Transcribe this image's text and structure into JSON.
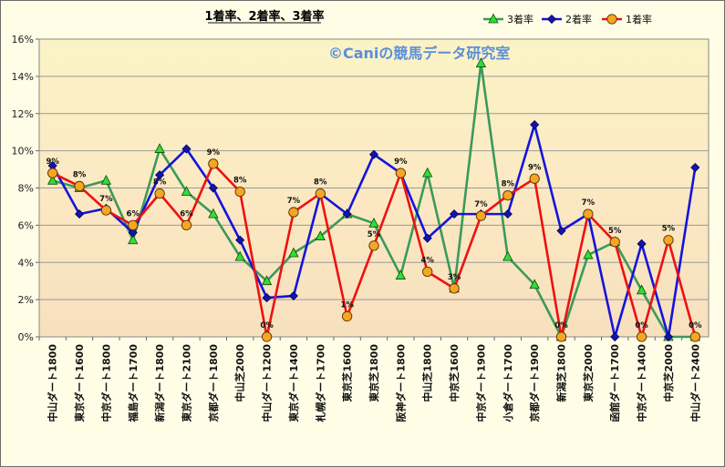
{
  "chart_data": {
    "type": "line",
    "title": "1着率、2着率、3着率",
    "watermark": "©Caniの競馬データ研究室",
    "xlabel": "",
    "ylabel": "",
    "ylim": [
      0,
      16
    ],
    "y_ticks": [
      "0%",
      "2%",
      "4%",
      "6%",
      "8%",
      "10%",
      "12%",
      "14%",
      "16%"
    ],
    "grid": true,
    "legend_position": "top-right",
    "categories": [
      "中山ダート1800",
      "東京ダート1600",
      "中京ダート1800",
      "福島ダート1700",
      "新潟ダート1800",
      "東京ダート2100",
      "京都ダート1800",
      "中山芝2000",
      "中山ダート1200",
      "東京ダート1400",
      "札幌ダート1700",
      "東京芝1600",
      "東京芝1800",
      "阪神ダート1800",
      "中山芝1800",
      "中京芝1600",
      "中京ダート1900",
      "小倉ダート1700",
      "京都ダート1900",
      "新潟芝1800",
      "東京芝2000",
      "函館ダート1700",
      "中京ダート1400",
      "中京芝2000",
      "中山ダート2400"
    ],
    "series": [
      {
        "name": "3着率",
        "color": "#3a9a5a",
        "marker": "triangle",
        "marker_fill": "#33dd33",
        "values": [
          8.4,
          8.0,
          8.4,
          5.2,
          10.1,
          7.8,
          6.6,
          4.3,
          3.0,
          4.5,
          5.4,
          6.6,
          6.1,
          3.3,
          8.8,
          2.6,
          14.7,
          4.3,
          2.8,
          0.0,
          4.4,
          5.1,
          2.5,
          0.0,
          0.0
        ]
      },
      {
        "name": "2着率",
        "color": "#1414dd",
        "marker": "diamond",
        "marker_fill": "#1414aa",
        "values": [
          9.2,
          6.6,
          6.9,
          5.6,
          8.7,
          10.1,
          8.0,
          5.2,
          2.1,
          2.2,
          7.7,
          6.6,
          9.8,
          8.8,
          5.3,
          6.6,
          6.6,
          6.6,
          11.4,
          5.7,
          6.6,
          0.0,
          5.0,
          0.0,
          9.1
        ]
      },
      {
        "name": "1着率",
        "color": "#ee1111",
        "marker": "circle",
        "marker_fill": "#f5a623",
        "values": [
          8.8,
          8.1,
          6.8,
          6.0,
          7.7,
          6.0,
          9.3,
          7.8,
          0.0,
          6.7,
          7.7,
          1.1,
          4.9,
          8.8,
          3.5,
          2.6,
          6.5,
          7.6,
          8.5,
          0.0,
          6.6,
          5.1,
          0.0,
          5.2,
          0.0
        ]
      }
    ],
    "data_labels": [
      "9%",
      "8%",
      "7%",
      "6%",
      "8%",
      "6%",
      "9%",
      "8%",
      "0%",
      "7%",
      "8%",
      "1%",
      "5%",
      "9%",
      "4%",
      "3%",
      "7%",
      "8%",
      "9%",
      "0%",
      "7%",
      "5%",
      "0%",
      "5%",
      "0%"
    ]
  }
}
